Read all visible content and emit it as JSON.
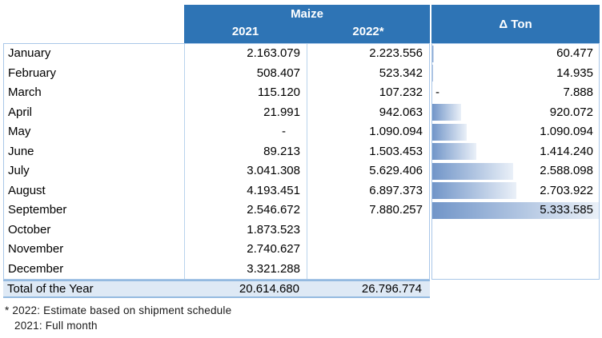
{
  "table": {
    "header": {
      "group_label": "Maize",
      "col_2021": "2021",
      "col_2022": "2022*",
      "delta_label": "Δ Ton"
    },
    "rows": [
      {
        "month": "January",
        "y2021": "2.163.079",
        "y2022": "2.223.556",
        "delta": "60.477",
        "delta_minus": ""
      },
      {
        "month": "February",
        "y2021": "508.407",
        "y2022": "523.342",
        "delta": "14.935",
        "delta_minus": ""
      },
      {
        "month": "March",
        "y2021": "115.120",
        "y2022": "107.232",
        "delta": "7.888",
        "delta_minus": "-"
      },
      {
        "month": "April",
        "y2021": "21.991",
        "y2022": "942.063",
        "delta": "920.072",
        "delta_minus": ""
      },
      {
        "month": "May",
        "y2021": "-",
        "y2022": "1.090.094",
        "delta": "1.090.094",
        "delta_minus": ""
      },
      {
        "month": "June",
        "y2021": "89.213",
        "y2022": "1.503.453",
        "delta": "1.414.240",
        "delta_minus": ""
      },
      {
        "month": "July",
        "y2021": "3.041.308",
        "y2022": "5.629.406",
        "delta": "2.588.098",
        "delta_minus": ""
      },
      {
        "month": "August",
        "y2021": "4.193.451",
        "y2022": "6.897.373",
        "delta": "2.703.922",
        "delta_minus": ""
      },
      {
        "month": "September",
        "y2021": "2.546.672",
        "y2022": "7.880.257",
        "delta": "5.333.585",
        "delta_minus": ""
      },
      {
        "month": "October",
        "y2021": "1.873.523",
        "y2022": "",
        "delta": "",
        "delta_minus": ""
      },
      {
        "month": "November",
        "y2021": "2.740.627",
        "y2022": "",
        "delta": "",
        "delta_minus": ""
      },
      {
        "month": "December",
        "y2021": "3.321.288",
        "y2022": "",
        "delta": "",
        "delta_minus": ""
      }
    ],
    "total": {
      "label": "Total of the Year",
      "y2021": "20.614.680",
      "y2022": "26.796.774"
    },
    "footnotes": {
      "line1": "* 2022: Estimate based on shipment schedule",
      "line2": "2021: Full month"
    }
  },
  "colors": {
    "header_bg": "#2E74B5",
    "header_text": "#FFFFFF",
    "grid_border": "#A9C7E8",
    "total_row_bg": "#DEE9F5",
    "total_row_border": "#94BAE0",
    "bar_gradient_start": "#7195C8",
    "bar_gradient_end": "#EAF0F8"
  },
  "chart_data": {
    "type": "table",
    "title": "Maize shipments by month, 2021 vs 2022 estimate, with Δ Ton data bars",
    "categories": [
      "January",
      "February",
      "March",
      "April",
      "May",
      "June",
      "July",
      "August",
      "September",
      "October",
      "November",
      "December"
    ],
    "series": [
      {
        "name": "2021",
        "values": [
          2163079,
          508407,
          115120,
          21991,
          null,
          89213,
          3041308,
          4193451,
          2546672,
          1873523,
          2740627,
          3321288
        ]
      },
      {
        "name": "2022*",
        "values": [
          2223556,
          523342,
          107232,
          942063,
          1090094,
          1503453,
          5629406,
          6897373,
          7880257,
          null,
          null,
          null
        ]
      },
      {
        "name": "Δ Ton",
        "values": [
          60477,
          14935,
          -7888,
          920072,
          1090094,
          1414240,
          2588098,
          2703922,
          5333585,
          null,
          null,
          null
        ]
      }
    ],
    "totals": {
      "y2021": 20614680,
      "y2022": 26796774
    },
    "delta_bar": {
      "max": 5333585,
      "min": 0,
      "style": "gradient-data-bar",
      "negative_shown_as": "accounting-minus"
    }
  }
}
